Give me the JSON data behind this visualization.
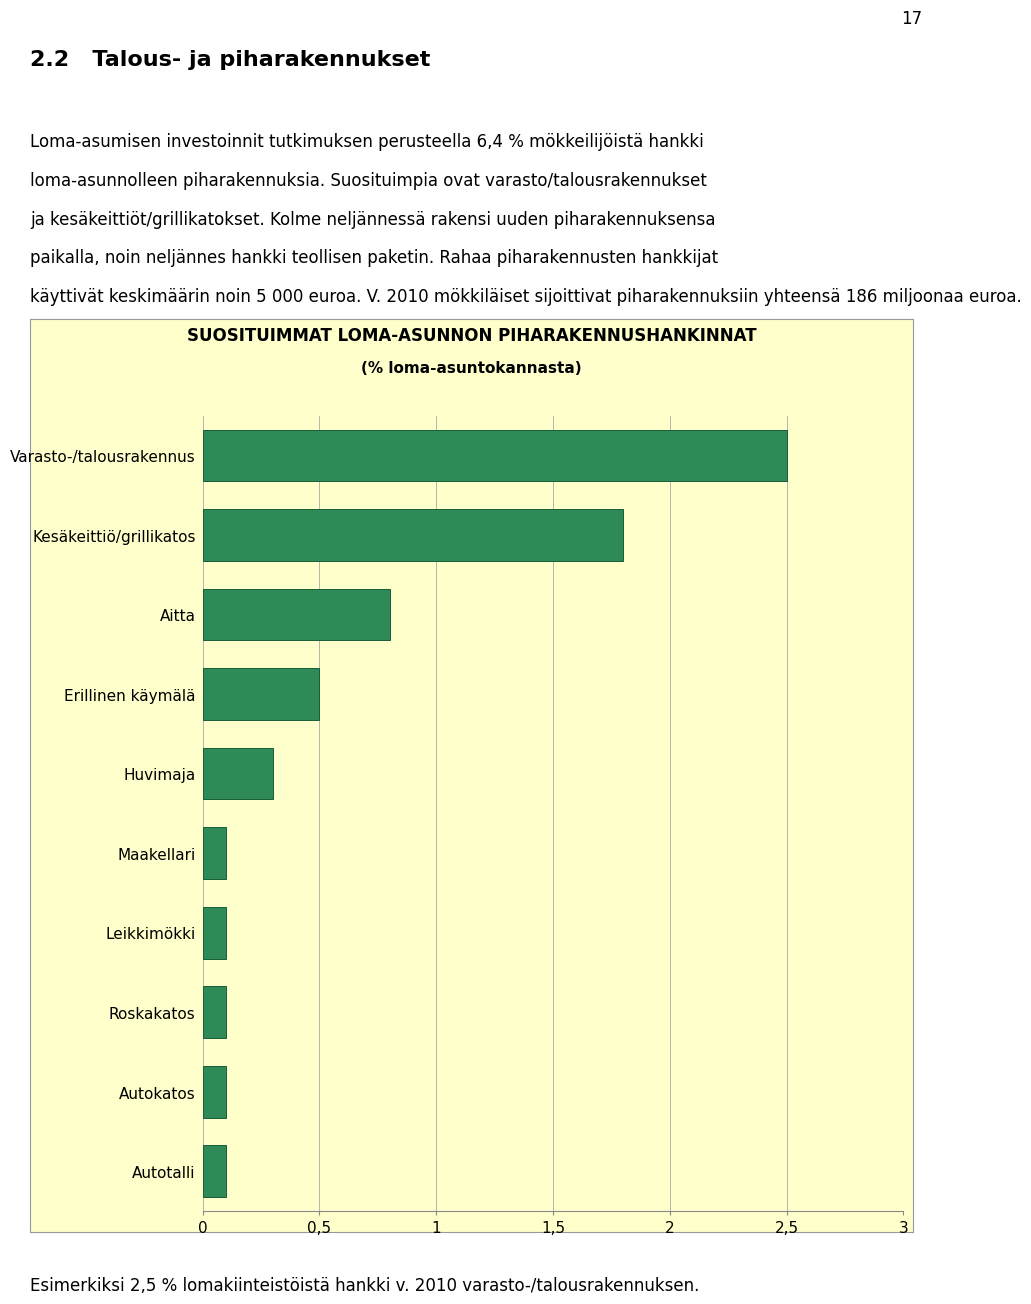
{
  "title_line1": "SUOSITUIMMAT LOMA-ASUNNON PIHARAKENNUSHANKINNAT",
  "title_line2": "(% loma-asuntokannasta)",
  "categories": [
    "Varasto-/talousrakennus",
    "Kesäkeittiö/grillikatos",
    "Aitta",
    "Erillinen käymälä",
    "Huvimaja",
    "Maakellari",
    "Leikkimökki",
    "Roskakatos",
    "Autokatos",
    "Autotalli"
  ],
  "values": [
    2.5,
    1.8,
    0.8,
    0.5,
    0.3,
    0.1,
    0.1,
    0.1,
    0.1,
    0.1
  ],
  "bar_color": "#2e8b57",
  "bar_edge_color": "#1a5c38",
  "chart_bg_color": "#ffffcc",
  "page_bg_color": "#ffffff",
  "xlim": [
    0,
    3
  ],
  "xticks": [
    0,
    0.5,
    1,
    1.5,
    2,
    2.5,
    3
  ],
  "xtick_labels": [
    "0",
    "0,5",
    "1",
    "1,5",
    "2",
    "2,5",
    "3"
  ],
  "title_fontsize": 12,
  "tick_fontsize": 11,
  "label_fontsize": 11,
  "heading": "2.2   Talous- ja piharakennukset",
  "heading_fontsize": 16,
  "body_lines": [
    "Loma-asumisen investoinnit tutkimuksen perusteella 6,4 % mökkeilijöistä hankki",
    "loma-asunnolleen piharakennuksia. Suosituimpia ovat varasto/talousrakennukset",
    "ja kesäkeittiöt/grillikatokset. Kolme neljännessä rakensi uuden piharakennuksensa",
    "paikalla, noin neljännes hankki teollisen paketin. Rahaa piharakennusten hankkijat",
    "käyttivät keskimäärin noin 5 000 euroa. V. 2010 mökkiläiset sijoittivat piharakennuksiin yhteensä 186 miljoonaa euroa."
  ],
  "body_fontsize": 12,
  "footer_text": "Esimerkiksi 2,5 % lomakiinteistöistä hankki v. 2010 varasto-/talousrakennuksen.",
  "footer_fontsize": 12,
  "page_number": "17",
  "page_number_fontsize": 12
}
